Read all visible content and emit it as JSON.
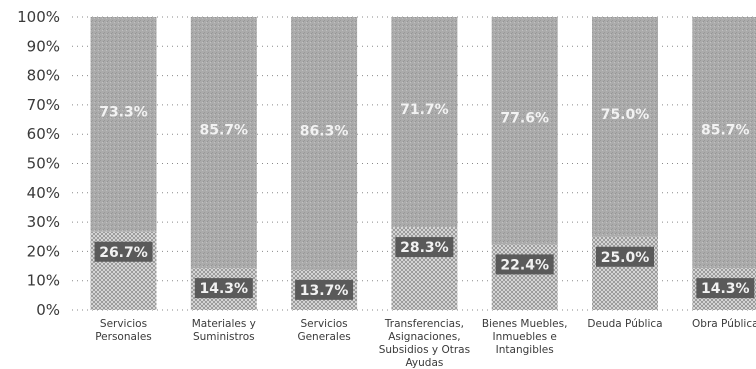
{
  "chart_data": {
    "type": "bar",
    "stacked": true,
    "ylim": [
      0,
      100
    ],
    "y_ticks": [
      "0%",
      "10%",
      "20%",
      "30%",
      "40%",
      "50%",
      "60%",
      "70%",
      "80%",
      "90%",
      "100%"
    ],
    "categories": [
      [
        "Servicios",
        "Personales"
      ],
      [
        "Materiales y",
        "Suministros"
      ],
      [
        "Servicios",
        "Generales"
      ],
      [
        "Transferencias,",
        "Asignaciones,",
        "Subsidios y Otras",
        "Ayudas"
      ],
      [
        "Bienes Muebles,",
        "Inmuebles e",
        "Intangibles"
      ],
      [
        "Deuda Pública"
      ],
      [
        "Obra Pública"
      ]
    ],
    "series": [
      {
        "values": [
          26.7,
          14.3,
          13.7,
          28.3,
          22.4,
          25.0,
          14.3
        ],
        "labels": [
          "26.7%",
          "14.3%",
          "13.7%",
          "28.3%",
          "22.4%",
          "25.0%",
          "14.3%"
        ],
        "color": "#d9d9d9"
      },
      {
        "values": [
          73.3,
          85.7,
          86.3,
          71.7,
          77.6,
          75.0,
          85.7
        ],
        "labels": [
          "73.3%",
          "85.7%",
          "86.3%",
          "71.7%",
          "77.6%",
          "75.0%",
          "85.7%"
        ],
        "color": "#a9a9a9"
      }
    ],
    "grid": true,
    "legend": "none"
  }
}
